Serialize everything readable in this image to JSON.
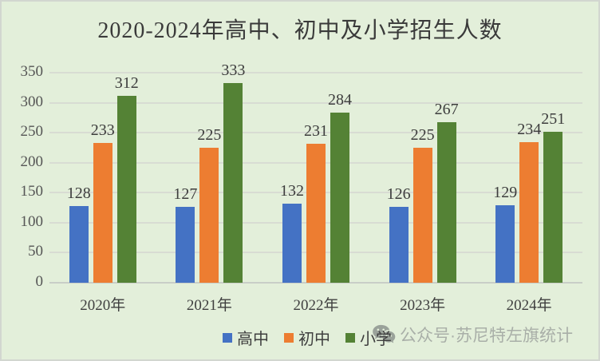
{
  "window": {
    "background_color": "#e3efda",
    "border_color": "#d2d6d0"
  },
  "chart_data": {
    "type": "bar",
    "title": "2020-2024年高中、初中及小学招生人数",
    "categories": [
      "2020年",
      "2021年",
      "2022年",
      "2023年",
      "2024年"
    ],
    "series": [
      {
        "name": "高中",
        "color": "#4472C4",
        "values": [
          128,
          127,
          132,
          126,
          129
        ]
      },
      {
        "name": "初中",
        "color": "#ED7D31",
        "values": [
          233,
          225,
          231,
          225,
          234
        ]
      },
      {
        "name": "小学",
        "color": "#548235",
        "values": [
          312,
          333,
          284,
          267,
          251
        ]
      }
    ],
    "xlabel": "",
    "ylabel": "",
    "ylim": [
      0,
      350
    ],
    "ytick_step": 50,
    "yticks": [
      "0",
      "50",
      "100",
      "150",
      "200",
      "250",
      "300",
      "350"
    ],
    "grid": true,
    "data_labels": true,
    "legend_position": "bottom"
  },
  "legend": {
    "items": [
      {
        "label": "高中",
        "color": "#4472C4"
      },
      {
        "label": "初中",
        "color": "#ED7D31"
      },
      {
        "label": "小学",
        "color": "#548235"
      }
    ]
  },
  "watermark": {
    "icon": "wechat-icon",
    "text": "公众号·苏尼特左旗统计",
    "color": "#a9afa8"
  },
  "text_colors": {
    "title": "#3a3a3a",
    "axis_labels": "#555555",
    "data_labels": "#3d3d3d"
  }
}
